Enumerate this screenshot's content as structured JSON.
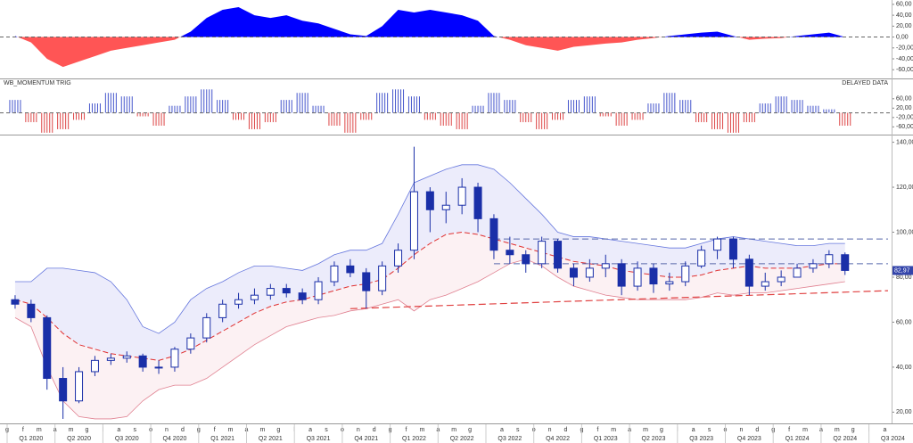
{
  "chart_data": [
    {
      "type": "area",
      "values": [
        2,
        -10,
        -40,
        -55,
        -45,
        -35,
        -25,
        -20,
        -15,
        -10,
        -5,
        10,
        35,
        50,
        55,
        40,
        35,
        40,
        30,
        25,
        15,
        5,
        2,
        20,
        50,
        45,
        50,
        45,
        40,
        30,
        2,
        -5,
        -15,
        -20,
        -25,
        -18,
        -15,
        -12,
        -10,
        -5,
        -2,
        2,
        5,
        8,
        10,
        2,
        -5,
        -3,
        -2,
        2,
        5,
        8,
        0,
        null,
        null,
        null
      ],
      "ylim": [
        -76,
        68
      ],
      "yticks": [
        {
          "value": 60,
          "label": "60,00"
        },
        {
          "value": 40,
          "label": "40,00"
        },
        {
          "value": 20,
          "label": "20,00"
        },
        {
          "value": 0,
          "label": "0,00"
        },
        {
          "value": -20,
          "label": "-20,00"
        },
        {
          "value": -40,
          "label": "-40,00"
        },
        {
          "value": -60,
          "label": "-60,00"
        }
      ],
      "colors": {
        "positive": "#0000ff",
        "negative": "#ff5555"
      },
      "zero_line": true
    },
    {
      "type": "bar",
      "title": "WB_MOMENTUM TRIG",
      "annotation": "DELAYED DATA",
      "values": [
        55,
        -40,
        -85,
        -70,
        -30,
        40,
        85,
        70,
        -15,
        -55,
        30,
        70,
        100,
        55,
        -30,
        -70,
        -40,
        55,
        85,
        30,
        -55,
        -85,
        -30,
        85,
        100,
        70,
        -30,
        -55,
        -70,
        30,
        85,
        55,
        -40,
        -70,
        -30,
        55,
        70,
        -15,
        -55,
        -30,
        40,
        85,
        55,
        -40,
        -70,
        -85,
        -40,
        40,
        70,
        55,
        30,
        15,
        -55,
        null,
        null,
        null
      ],
      "ylim": [
        -93,
        143
      ],
      "yticks": [
        {
          "value": 60,
          "label": "60,00"
        },
        {
          "value": 20,
          "label": "20,00"
        },
        {
          "value": -20,
          "label": "-20,00"
        },
        {
          "value": -60,
          "label": "-60,00"
        }
      ],
      "colors": {
        "positive": "#4455cc",
        "negative": "#dd4444"
      },
      "zero_line": true
    },
    {
      "type": "candlestick",
      "categories": [
        "g",
        "f",
        "m",
        "a",
        "m",
        "g",
        "l",
        "a",
        "s",
        "o",
        "n",
        "d",
        "g",
        "f",
        "m",
        "a",
        "m",
        "g",
        "l",
        "a",
        "s",
        "o",
        "n",
        "d",
        "g",
        "f",
        "m",
        "a",
        "m",
        "g",
        "l",
        "a",
        "s",
        "o",
        "n",
        "d",
        "g",
        "f",
        "m",
        "a",
        "m",
        "g",
        "l",
        "a",
        "s",
        "o",
        "n",
        "d",
        "g",
        "f",
        "m",
        "a",
        "m",
        "g",
        "l",
        "a"
      ],
      "quarters": [
        "Q1 2020",
        "Q2 2020",
        "Q3 2020",
        "Q4 2020",
        "Q1 2021",
        "Q2 2021",
        "Q3 2021",
        "Q4 2021",
        "Q1 2022",
        "Q2 2022",
        "Q3 2022",
        "Q4 2022",
        "Q1 2023",
        "Q2 2023",
        "Q3 2023",
        "Q4 2023",
        "Q1 2024",
        "Q2 2024",
        "Q3 2024"
      ],
      "open": [
        70,
        68,
        62,
        35,
        25,
        38,
        43,
        44,
        45,
        40,
        40,
        48,
        53,
        62,
        68,
        70,
        72,
        75,
        73,
        70,
        78,
        85,
        82,
        74,
        85,
        92,
        118,
        110,
        112,
        120,
        106,
        92,
        90,
        86,
        96,
        84,
        80,
        84,
        86,
        76,
        84,
        77,
        78,
        85,
        92,
        97,
        88,
        76,
        78,
        80,
        84,
        86,
        90,
        null,
        null,
        null
      ],
      "high": [
        72,
        70,
        63,
        40,
        40,
        45,
        46,
        47,
        46,
        43,
        49,
        55,
        64,
        70,
        73,
        75,
        77,
        77,
        75,
        80,
        87,
        88,
        84,
        87,
        95,
        138,
        120,
        118,
        124,
        122,
        108,
        98,
        92,
        98,
        97,
        86,
        88,
        90,
        88,
        87,
        86,
        82,
        87,
        94,
        98,
        98,
        90,
        82,
        83,
        86,
        88,
        92,
        91,
        null,
        null,
        null
      ],
      "low": [
        66,
        60,
        30,
        17,
        24,
        36,
        41,
        42,
        38,
        37,
        38,
        46,
        51,
        60,
        66,
        68,
        70,
        71,
        68,
        68,
        76,
        80,
        66,
        72,
        82,
        88,
        100,
        104,
        108,
        100,
        88,
        86,
        82,
        84,
        82,
        76,
        78,
        80,
        72,
        74,
        73,
        74,
        76,
        84,
        88,
        84,
        72,
        74,
        76,
        80,
        82,
        84,
        81,
        null,
        null,
        null
      ],
      "close": [
        68,
        62,
        35,
        25,
        38,
        43,
        44,
        45,
        40,
        40,
        48,
        53,
        62,
        68,
        70,
        72,
        75,
        73,
        70,
        78,
        85,
        82,
        74,
        85,
        92,
        118,
        110,
        112,
        120,
        106,
        92,
        90,
        86,
        96,
        84,
        80,
        84,
        86,
        76,
        84,
        77,
        78,
        85,
        92,
        97,
        88,
        76,
        78,
        80,
        84,
        86,
        90,
        83,
        null,
        null,
        null
      ],
      "upper_band": [
        78,
        78,
        84,
        84,
        83,
        82,
        78,
        70,
        58,
        55,
        60,
        70,
        75,
        78,
        82,
        85,
        85,
        84,
        83,
        86,
        90,
        92,
        92,
        95,
        108,
        122,
        125,
        128,
        130,
        130,
        128,
        122,
        115,
        108,
        100,
        98,
        98,
        97,
        96,
        95,
        94,
        93,
        93,
        95,
        97,
        98,
        97,
        96,
        95,
        94,
        94,
        95,
        95,
        null,
        null,
        null
      ],
      "middle_band": [
        70,
        68,
        62,
        55,
        50,
        48,
        46,
        45,
        44,
        43,
        45,
        48,
        52,
        56,
        60,
        64,
        67,
        69,
        70,
        72,
        74,
        76,
        77,
        79,
        84,
        90,
        95,
        99,
        100,
        99,
        97,
        95,
        93,
        91,
        89,
        87,
        86,
        85,
        83,
        82,
        81,
        80,
        80,
        81,
        83,
        84,
        85,
        84,
        84,
        84,
        85,
        86,
        86,
        null,
        null,
        null
      ],
      "lower_band": [
        62,
        58,
        40,
        25,
        18,
        17,
        17,
        18,
        25,
        30,
        32,
        32,
        35,
        40,
        45,
        50,
        54,
        58,
        60,
        62,
        63,
        65,
        66,
        68,
        70,
        65,
        70,
        72,
        75,
        78,
        82,
        86,
        88,
        85,
        80,
        76,
        74,
        72,
        71,
        70,
        70,
        70,
        70,
        71,
        73,
        72,
        73,
        73,
        74,
        75,
        76,
        77,
        78,
        null,
        null,
        null
      ],
      "levels": [
        97,
        86
      ],
      "trendline": [
        66,
        74
      ],
      "last_price": 82.97,
      "last_price_label": "82,97",
      "ylim": [
        15,
        143
      ],
      "yticks": [
        {
          "value": 140,
          "label": "140,00"
        },
        {
          "value": 120,
          "label": "120,00"
        },
        {
          "value": 100,
          "label": "100,00"
        },
        {
          "value": 80,
          "label": "80,00"
        },
        {
          "value": 60,
          "label": "60,00"
        },
        {
          "value": 40,
          "label": "40,00"
        },
        {
          "value": 20,
          "label": "20,00"
        }
      ],
      "colors": {
        "up": "#ffffff",
        "down": "#1a2fa8",
        "outline": "#1a2fa8",
        "band": "#6677dd",
        "middle": "#e03030",
        "level": "#5566aa",
        "trend": "#e04040"
      }
    }
  ]
}
